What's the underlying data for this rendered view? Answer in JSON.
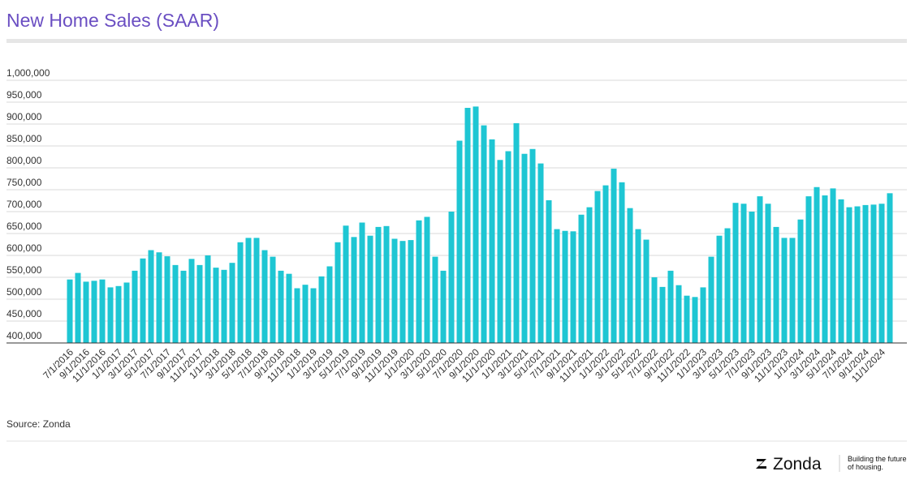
{
  "chart_data": {
    "type": "bar",
    "title": "New Home Sales (SAAR)",
    "color": "#1ec6d3",
    "categories": [
      "7/1/2016",
      null,
      "9/1/2016",
      null,
      "11/1/2016",
      null,
      "1/1/2017",
      null,
      "3/1/2017",
      null,
      "5/1/2017",
      null,
      "7/1/2017",
      null,
      "9/1/2017",
      null,
      "11/1/2017",
      null,
      "1/1/2018",
      null,
      "3/1/2018",
      null,
      "5/1/2018",
      null,
      "7/1/2018",
      null,
      "9/1/2018",
      null,
      "11/1/2018",
      null,
      "1/1/2019",
      null,
      "3/1/2019",
      null,
      "5/1/2019",
      null,
      "7/1/2019",
      null,
      "9/1/2019",
      null,
      "11/1/2019",
      null,
      "1/1/2020",
      null,
      "3/1/2020",
      null,
      "5/1/2020",
      null,
      "7/1/2020",
      null,
      "9/1/2020",
      null,
      "11/1/2020",
      null,
      "1/1/2021",
      null,
      "3/1/2021",
      null,
      "5/1/2021",
      null,
      "7/1/2021",
      null,
      "9/1/2021",
      null,
      "11/1/2021",
      null,
      "1/1/2022",
      null,
      "3/1/2022",
      null,
      "5/1/2022",
      null,
      "7/1/2022",
      null,
      "9/1/2022",
      null,
      "11/1/2022",
      null,
      "1/1/2023",
      null,
      "3/1/2023",
      null,
      "5/1/2023",
      null,
      "7/1/2023",
      null,
      "9/1/2023",
      null,
      "11/1/2023",
      null,
      "1/1/2024",
      null,
      "3/1/2024",
      null,
      "5/1/2024",
      null,
      "7/1/2024",
      null,
      "9/1/2024",
      null,
      "11/1/2024",
      null
    ],
    "values": [
      545000,
      560000,
      540000,
      542000,
      545000,
      527000,
      530000,
      538000,
      565000,
      593000,
      612000,
      607000,
      598000,
      578000,
      565000,
      592000,
      578000,
      600000,
      572000,
      567000,
      583000,
      630000,
      640000,
      640000,
      612000,
      597000,
      565000,
      558000,
      525000,
      533000,
      525000,
      552000,
      575000,
      630000,
      668000,
      642000,
      675000,
      645000,
      665000,
      667000,
      638000,
      633000,
      635000,
      680000,
      688000,
      597000,
      565000,
      700000,
      862000,
      937000,
      940000,
      897000,
      865000,
      818000,
      838000,
      902000,
      832000,
      843000,
      810000,
      726000,
      660000,
      656000,
      655000,
      693000,
      710000,
      747000,
      760000,
      798000,
      767000,
      708000,
      660000,
      636000,
      550000,
      528000,
      565000,
      532000,
      508000,
      505000,
      527000,
      597000,
      645000,
      662000,
      720000,
      718000,
      700000,
      735000,
      718000,
      665000,
      640000,
      640000,
      682000,
      735000,
      756000,
      737000,
      753000,
      728000,
      710000,
      712000,
      715000,
      716000,
      718000,
      742000
    ],
    "ylim": [
      400000,
      1000000
    ],
    "yticks": [
      {
        "value": 400000,
        "label": "400,000"
      },
      {
        "value": 450000,
        "label": "450,000"
      },
      {
        "value": 500000,
        "label": "500,000"
      },
      {
        "value": 550000,
        "label": "550,000"
      },
      {
        "value": 600000,
        "label": "600,000"
      },
      {
        "value": 650000,
        "label": "650,000"
      },
      {
        "value": 700000,
        "label": "700,000"
      },
      {
        "value": 750000,
        "label": "750,000"
      },
      {
        "value": 800000,
        "label": "800,000"
      },
      {
        "value": 850000,
        "label": "850,000"
      },
      {
        "value": 900000,
        "label": "900,000"
      },
      {
        "value": 950000,
        "label": "950,000"
      },
      {
        "value": 1000000,
        "label": "1,000,000"
      }
    ],
    "grid": true,
    "source": "Source: Zonda",
    "footer": {
      "brand": "Zonda",
      "tagline": [
        "Building the future",
        "of housing."
      ]
    }
  }
}
